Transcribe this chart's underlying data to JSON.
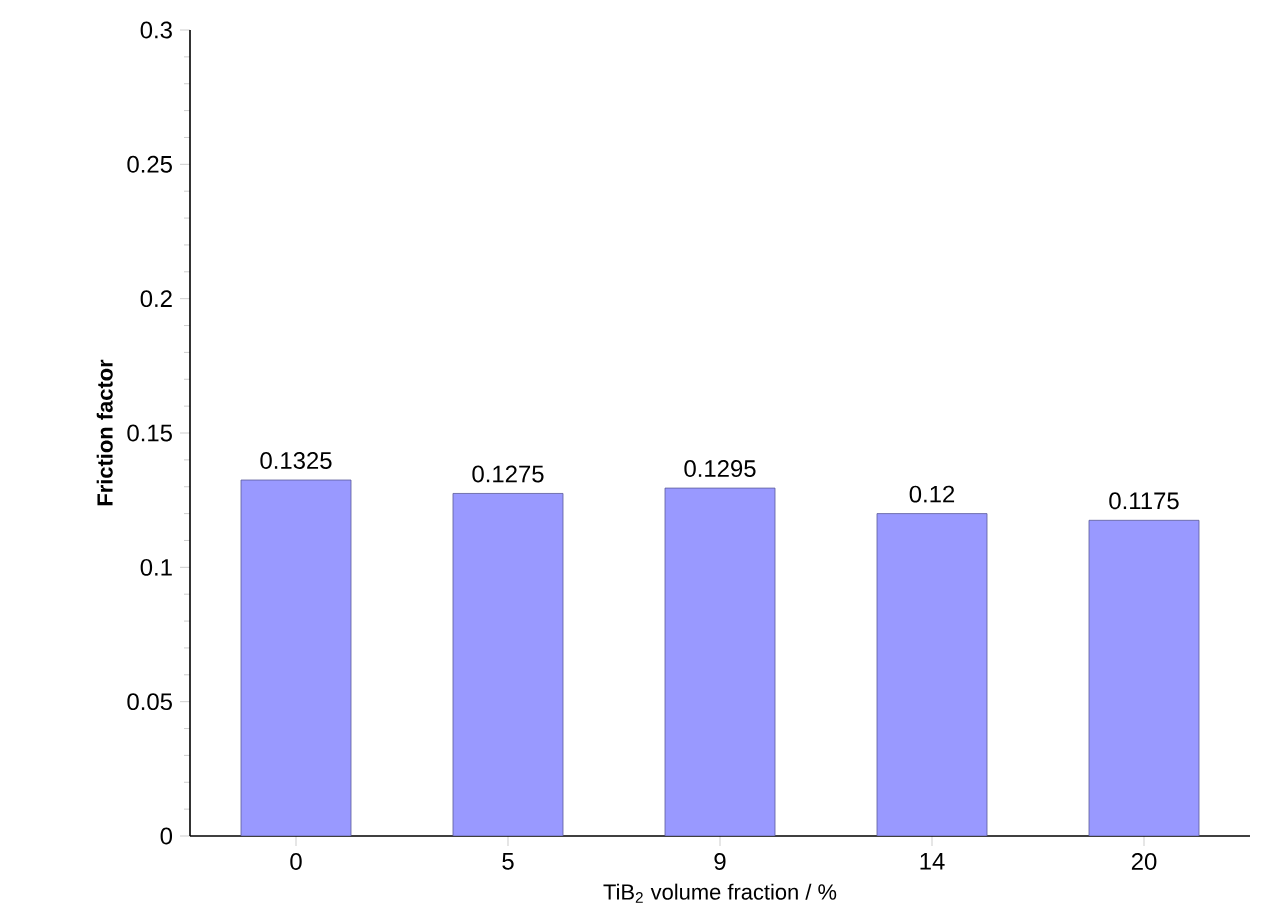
{
  "chart_data": {
    "type": "bar",
    "categories": [
      "0",
      "5",
      "9",
      "14",
      "20"
    ],
    "values": [
      0.1325,
      0.1275,
      0.1295,
      0.12,
      0.1175
    ],
    "color": "#9999ff",
    "xlabel": "TiB$_{2}$ volume fraction / %",
    "ylabel": "Friction factor",
    "ylim": [
      0,
      0.3
    ],
    "yticks": [
      0,
      0.05,
      0.1,
      0.15,
      0.2,
      0.25,
      0.3
    ],
    "data_labels": true
  }
}
